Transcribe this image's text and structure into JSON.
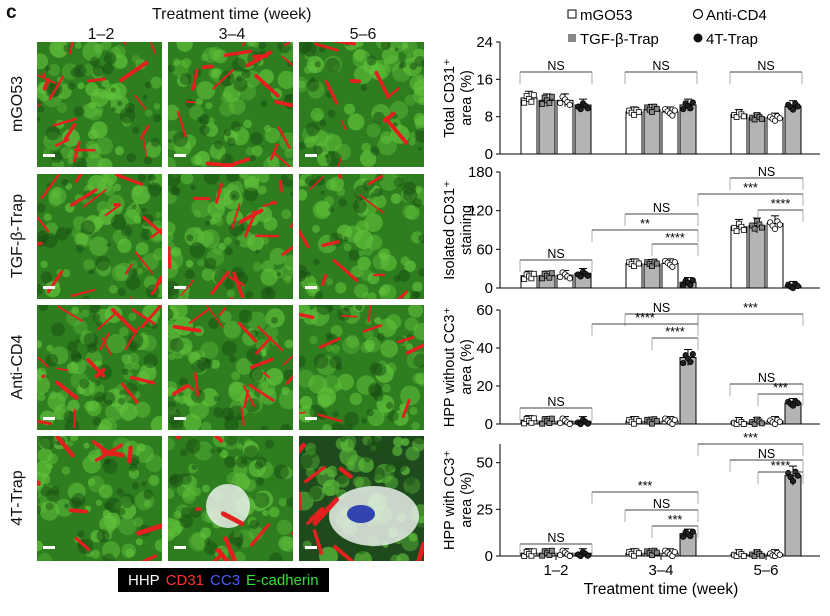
{
  "figure": {
    "panel_letter": "c",
    "time_title": "Treatment time (week)",
    "columns": [
      "1–2",
      "3–4",
      "5–6"
    ],
    "rows": [
      "mGO53",
      "TGF-β-Trap",
      "Anti-CD4",
      "4T-Trap"
    ],
    "stain_legend": [
      {
        "label": "HHP",
        "color": "#ffffff"
      },
      {
        "label": "CD31",
        "color": "#e8202a"
      },
      {
        "label": "CC3",
        "color": "#3a4dff"
      },
      {
        "label": "E-cadherin",
        "color": "#2fd62f"
      }
    ],
    "colors": {
      "green": "#2e8a1f",
      "red": "#e0202a",
      "yellow": "#ffee00",
      "white": "#f2f2f2"
    }
  },
  "chart_data": [
    {
      "type": "bar",
      "ylabel": [
        "Total CD31⁺",
        "area (%)"
      ],
      "ylim": [
        0,
        24
      ],
      "yticks": [
        "0",
        "8",
        "16",
        "24"
      ],
      "categories": [
        "1–2",
        "3–4",
        "5–6"
      ],
      "series": [
        {
          "name": "mGO53",
          "values": [
            12,
            9,
            8.5
          ]
        },
        {
          "name": "TGF-β-Trap",
          "values": [
            11.5,
            9.5,
            7.8
          ]
        },
        {
          "name": "Anti-CD4",
          "values": [
            11.5,
            9,
            7.8
          ]
        },
        {
          "name": "4T-Trap",
          "values": [
            10.5,
            10.5,
            10.2
          ]
        }
      ],
      "annotations": [
        "NS",
        "NS",
        "NS"
      ]
    },
    {
      "type": "bar",
      "ylabel": [
        "Isolated CD31⁺",
        "staining"
      ],
      "ylim": [
        0,
        180
      ],
      "yticks": [
        "0",
        "60",
        "120",
        "180"
      ],
      "categories": [
        "1–2",
        "3–4",
        "5–6"
      ],
      "series": [
        {
          "name": "mGO53",
          "values": [
            19,
            38,
            95
          ]
        },
        {
          "name": "TGF-β-Trap",
          "values": [
            19,
            37,
            97
          ]
        },
        {
          "name": "Anti-CD4",
          "values": [
            20,
            38,
            100
          ]
        },
        {
          "name": "4T-Trap",
          "values": [
            23,
            9,
            3
          ]
        }
      ],
      "annotations": [
        "NS",
        "NS",
        "**",
        "****",
        "NS",
        "***",
        "****"
      ]
    },
    {
      "type": "bar",
      "ylabel": [
        "HPP without CC3⁺",
        "area (%)"
      ],
      "ylim": [
        0,
        60
      ],
      "yticks": [
        "0",
        "20",
        "40",
        "60"
      ],
      "categories": [
        "1–2",
        "3–4",
        "5–6"
      ],
      "series": [
        {
          "name": "mGO53",
          "values": [
            2,
            1.5,
            1
          ]
        },
        {
          "name": "TGF-β-Trap",
          "values": [
            1.5,
            1.2,
            1
          ]
        },
        {
          "name": "Anti-CD4",
          "values": [
            1.5,
            1.5,
            1.5
          ]
        },
        {
          "name": "4T-Trap",
          "values": [
            1.5,
            35,
            11
          ]
        }
      ],
      "annotations": [
        "NS",
        "NS",
        "****",
        "****",
        "***",
        "NS",
        "***"
      ]
    },
    {
      "type": "bar",
      "ylabel": [
        "HPP with CC3⁺",
        "area (%)"
      ],
      "ylim": [
        0,
        60
      ],
      "yticks": [
        "0",
        "25",
        "50"
      ],
      "xlabel": "Treatment time (week)",
      "categories": [
        "1–2",
        "3–4",
        "5–6"
      ],
      "series": [
        {
          "name": "mGO53",
          "values": [
            1.5,
            1.5,
            1
          ]
        },
        {
          "name": "TGF-β-Trap",
          "values": [
            1.5,
            1.5,
            0.8
          ]
        },
        {
          "name": "Anti-CD4",
          "values": [
            1.5,
            1.5,
            1
          ]
        },
        {
          "name": "4T-Trap",
          "values": [
            1.5,
            12,
            43
          ]
        }
      ],
      "annotations": [
        "NS",
        "***",
        "NS",
        "***",
        "***",
        "NS",
        "****"
      ]
    }
  ],
  "legend": [
    {
      "name": "mGO53",
      "marker": "open-square"
    },
    {
      "name": "Anti-CD4",
      "marker": "open-circle"
    },
    {
      "name": "TGF-β-Trap",
      "marker": "filled-square"
    },
    {
      "name": "4T-Trap",
      "marker": "filled-circle"
    }
  ]
}
